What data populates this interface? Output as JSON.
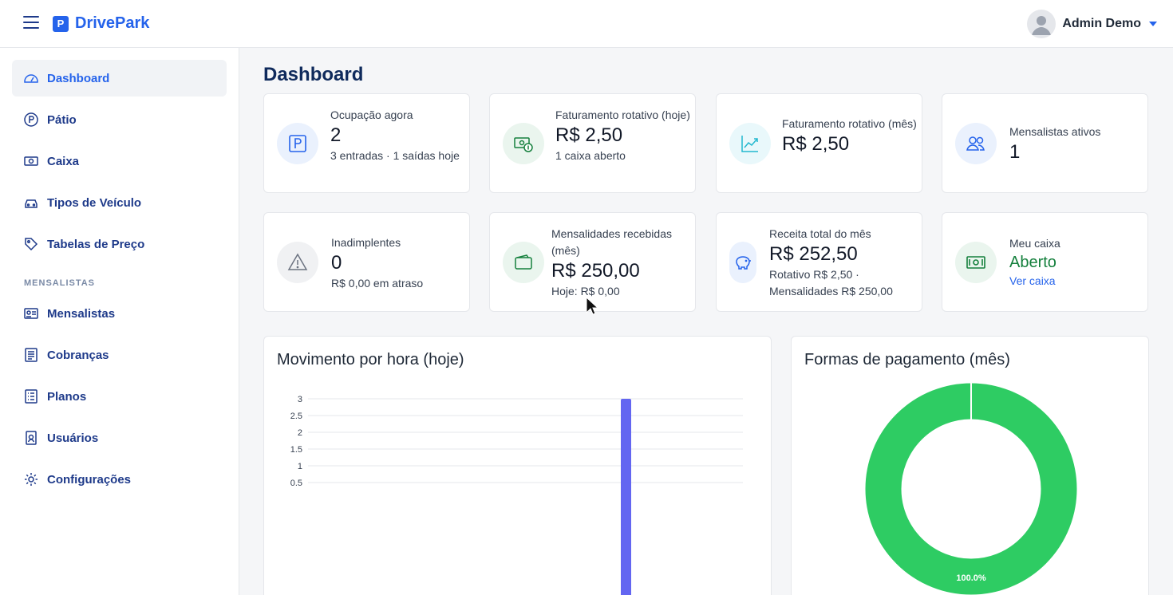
{
  "brand": {
    "logo_letter": "P",
    "name": "DrivePark"
  },
  "user": {
    "name": "Admin Demo"
  },
  "sidebar": {
    "items": [
      {
        "label": "Dashboard",
        "icon": "gauge-icon",
        "active": true
      },
      {
        "label": "Pátio",
        "icon": "parking-circle-icon"
      },
      {
        "label": "Caixa",
        "icon": "cash-icon"
      },
      {
        "label": "Tipos de Veículo",
        "icon": "car-icon"
      },
      {
        "label": "Tabelas de Preço",
        "icon": "tag-icon"
      }
    ],
    "section_label": "MENSALISTAS",
    "section_items": [
      {
        "label": "Mensalistas",
        "icon": "id-card-icon"
      },
      {
        "label": "Cobranças",
        "icon": "receipt-icon"
      },
      {
        "label": "Planos",
        "icon": "list-icon"
      },
      {
        "label": "Usuários",
        "icon": "user-badge-icon"
      },
      {
        "label": "Configurações",
        "icon": "gear-icon"
      }
    ]
  },
  "page": {
    "title": "Dashboard"
  },
  "cards": [
    {
      "label": "Ocupação agora",
      "value": "2",
      "sub": "3 entradas · 1 saídas hoje",
      "icon": "parking-icon"
    },
    {
      "label": "Faturamento rotativo (hoje)",
      "value": "R$ 2,50",
      "sub": "1 caixa aberto",
      "icon": "money-icon"
    },
    {
      "label": "Faturamento rotativo (mês)",
      "value": "R$ 2,50",
      "icon": "trend-icon"
    },
    {
      "label": "Mensalistas ativos",
      "value": "1",
      "icon": "users-icon"
    },
    {
      "label": "Inadimplentes",
      "value": "0",
      "sub": "R$ 0,00 em atraso",
      "icon": "warning-icon"
    },
    {
      "label": "Mensalidades recebidas (mês)",
      "value": "R$ 250,00",
      "sub": "Hoje: R$ 0,00",
      "icon": "wallet-icon"
    },
    {
      "label": "Receita total do mês",
      "value": "R$ 252,50",
      "sub": "Rotativo R$ 2,50 · Mensalidades R$ 250,00",
      "icon": "piggy-bank-icon"
    },
    {
      "label": "Meu caixa",
      "value": "Aberto",
      "link": "Ver caixa",
      "icon": "cash-register-icon"
    }
  ],
  "colors": {
    "accent": "#2563eb",
    "bar": "#6366f1",
    "donut": "#2ecc63",
    "green": "#15803d"
  },
  "chart_data": [
    {
      "type": "bar",
      "title": "Movimento por hora (hoje)",
      "yticks": [
        "0.5",
        "1",
        "1.5",
        "2",
        "2.5",
        "3"
      ],
      "ylim": [
        0,
        3
      ],
      "bar_value": 3,
      "grid": true
    },
    {
      "type": "pie",
      "title": "Formas de pagamento (mês)",
      "slices": [
        {
          "value": 100.0,
          "label": "100.0%"
        }
      ]
    }
  ]
}
